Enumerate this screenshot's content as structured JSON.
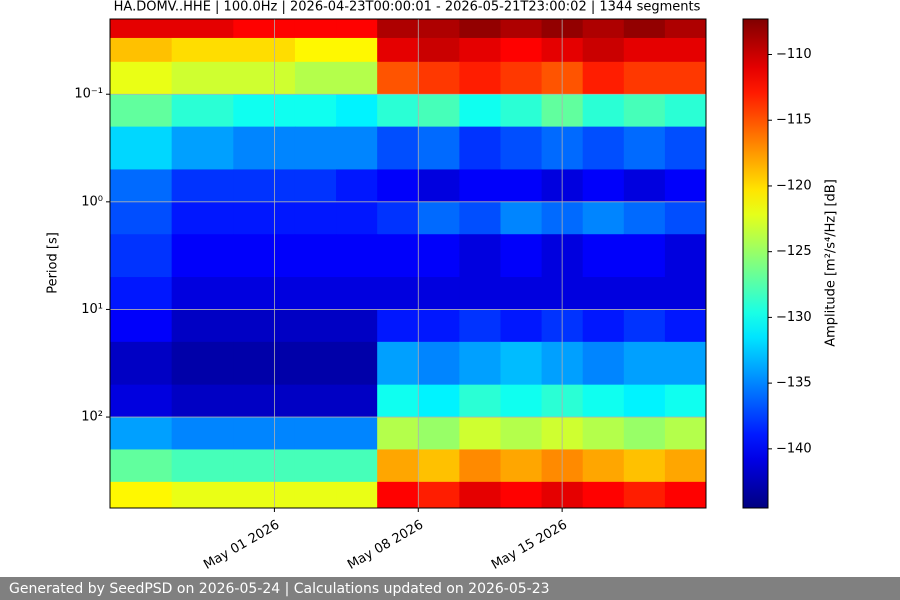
{
  "chart_data": {
    "type": "heatmap",
    "title": "HA.DOMV..HHE | 100.0Hz | 2026-04-23T00:00:01 - 2026-05-21T23:00:02 | 1344 segments",
    "y_label": "Period [s]",
    "colorbar_label": "Amplitude [m²/s⁴/Hz] [dB]",
    "footer": "Generated by SeedPSD on 2026-05-24 | Calculations updated on 2026-05-23",
    "x_edges": [
      "2026-04-23",
      "2026-04-26",
      "2026-04-29",
      "2026-05-02",
      "2026-05-04",
      "2026-05-06",
      "2026-05-08",
      "2026-05-10",
      "2026-05-12",
      "2026-05-14",
      "2026-05-16",
      "2026-05-18",
      "2026-05-20",
      "2026-05-22"
    ],
    "y_edges": [
      0.02,
      0.03,
      0.05,
      0.1,
      0.2,
      0.5,
      1,
      2,
      5,
      10,
      20,
      50,
      100,
      200,
      400,
      700
    ],
    "values": [
      [
        -111,
        -111,
        -112,
        -112,
        -112,
        -109,
        -109,
        -108,
        -109,
        -108,
        -109,
        -108,
        -109
      ],
      [
        -119,
        -120,
        -120,
        -121,
        -121,
        -111,
        -110,
        -111,
        -112,
        -111,
        -110,
        -111,
        -111
      ],
      [
        -122,
        -123,
        -123,
        -124,
        -124,
        -115,
        -114,
        -113,
        -114,
        -115,
        -113,
        -114,
        -114
      ],
      [
        -127,
        -129,
        -130,
        -130,
        -131,
        -129,
        -128,
        -130,
        -129,
        -127,
        -129,
        -128,
        -129
      ],
      [
        -132,
        -134,
        -135,
        -135,
        -135,
        -137,
        -136,
        -138,
        -137,
        -136,
        -137,
        -136,
        -137
      ],
      [
        -136,
        -138,
        -138,
        -138,
        -139,
        -140,
        -141,
        -140,
        -140,
        -141,
        -140,
        -141,
        -140
      ],
      [
        -137,
        -139,
        -139,
        -139,
        -139,
        -138,
        -136,
        -137,
        -135,
        -136,
        -135,
        -136,
        -137
      ],
      [
        -138,
        -140,
        -140,
        -140,
        -140,
        -140,
        -140,
        -141,
        -140,
        -141,
        -140,
        -140,
        -141
      ],
      [
        -139,
        -141,
        -141,
        -141,
        -141,
        -141,
        -141,
        -141,
        -141,
        -141,
        -141,
        -141,
        -141
      ],
      [
        -140,
        -142,
        -142,
        -142,
        -142,
        -139,
        -139,
        -138,
        -139,
        -138,
        -139,
        -138,
        -139
      ],
      [
        -142,
        -143,
        -143,
        -143,
        -143,
        -134,
        -135,
        -134,
        -133,
        -134,
        -135,
        -134,
        -134
      ],
      [
        -141,
        -142,
        -142,
        -142,
        -142,
        -130,
        -131,
        -129,
        -130,
        -129,
        -130,
        -131,
        -130
      ],
      [
        -134,
        -135,
        -135,
        -135,
        -135,
        -124,
        -125,
        -123,
        -124,
        -123,
        -124,
        -125,
        -124
      ],
      [
        -127,
        -128,
        -128,
        -128,
        -128,
        -118,
        -119,
        -117,
        -118,
        -117,
        -118,
        -119,
        -118
      ],
      [
        -121,
        -122,
        -122,
        -122,
        -122,
        -112,
        -113,
        -111,
        -112,
        -111,
        -112,
        -113,
        -112
      ]
    ],
    "xlim": [
      "2026-04-23",
      "2026-05-22"
    ],
    "xticks": [
      {
        "value": "2026-05-01",
        "label": "May 01 2026"
      },
      {
        "value": "2026-05-08",
        "label": "May 08 2026"
      },
      {
        "value": "2026-05-15",
        "label": "May 15 2026"
      }
    ],
    "ylim": [
      0.02,
      700
    ],
    "y_log": true,
    "y_inverted": true,
    "yticks": [
      {
        "value": 0.1,
        "label": "10⁻¹"
      },
      {
        "value": 1,
        "label": "10⁰"
      },
      {
        "value": 10,
        "label": "10¹"
      },
      {
        "value": 100,
        "label": "10²"
      }
    ],
    "grid": true,
    "colormap": "jet",
    "clim": [
      -144.5,
      -107.3
    ],
    "cticks": [
      {
        "value": -110,
        "label": "−110"
      },
      {
        "value": -115,
        "label": "−115"
      },
      {
        "value": -120,
        "label": "−120"
      },
      {
        "value": -125,
        "label": "−125"
      },
      {
        "value": -130,
        "label": "−130"
      },
      {
        "value": -135,
        "label": "−135"
      },
      {
        "value": -140,
        "label": "−140"
      }
    ]
  }
}
